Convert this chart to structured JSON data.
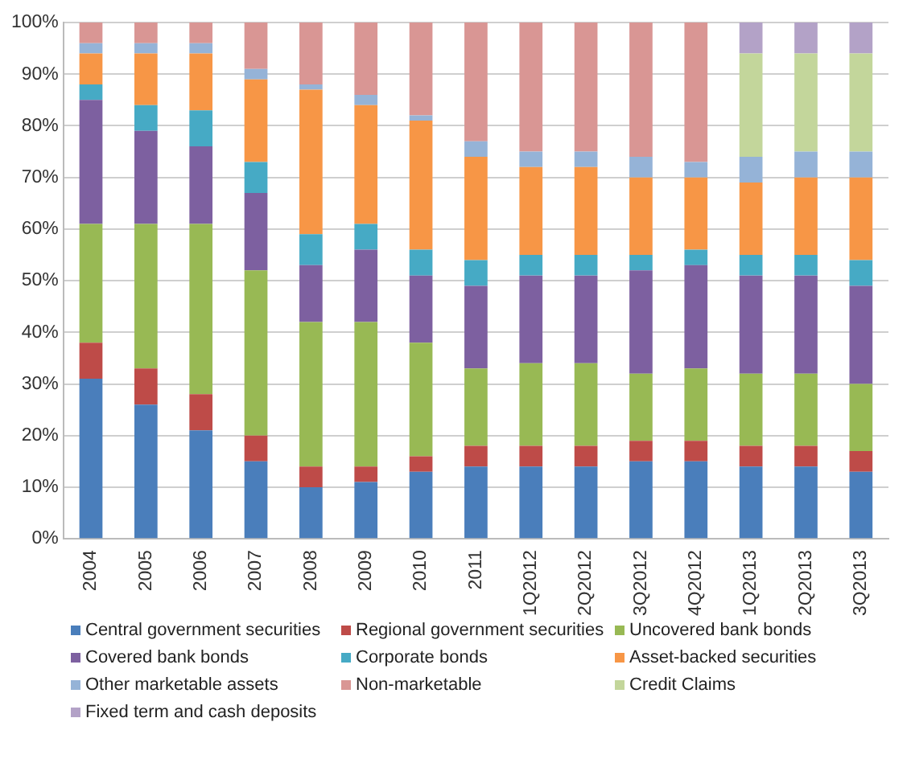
{
  "chart_data": {
    "type": "bar",
    "stacked": true,
    "grid": "y",
    "legend": "bottom",
    "categories": [
      "2004",
      "2005",
      "2006",
      "2007",
      "2008",
      "2009",
      "2010",
      "2011",
      "1Q2012",
      "2Q2012",
      "3Q2012",
      "4Q2012",
      "1Q2013",
      "2Q2013",
      "3Q2013"
    ],
    "ylim": [
      0,
      100
    ],
    "yticks": [
      {
        "value": 0,
        "label": "0%"
      },
      {
        "value": 10,
        "label": "10%"
      },
      {
        "value": 20,
        "label": "20%"
      },
      {
        "value": 30,
        "label": "30%"
      },
      {
        "value": 40,
        "label": "40%"
      },
      {
        "value": 50,
        "label": "50%"
      },
      {
        "value": 60,
        "label": "60%"
      },
      {
        "value": 70,
        "label": "70%"
      },
      {
        "value": 80,
        "label": "80%"
      },
      {
        "value": 90,
        "label": "90%"
      },
      {
        "value": 100,
        "label": "100%"
      }
    ],
    "series": [
      {
        "name": "Central government securities",
        "color": "#4a7ebb",
        "values": [
          31,
          26,
          21,
          15,
          10,
          11,
          13,
          14,
          14,
          14,
          15,
          15,
          14,
          14,
          13
        ]
      },
      {
        "name": "Regional government securities",
        "color": "#be4b48",
        "values": [
          7,
          7,
          7,
          5,
          4,
          3,
          3,
          4,
          4,
          4,
          4,
          4,
          4,
          4,
          4
        ]
      },
      {
        "name": "Uncovered bank bonds",
        "color": "#98b954",
        "values": [
          23,
          28,
          33,
          32,
          28,
          28,
          22,
          15,
          16,
          16,
          13,
          14,
          14,
          14,
          13
        ]
      },
      {
        "name": "Covered bank bonds",
        "color": "#7d60a0",
        "values": [
          24,
          18,
          15,
          15,
          11,
          14,
          13,
          16,
          17,
          17,
          20,
          20,
          19,
          19,
          19
        ]
      },
      {
        "name": "Corporate bonds",
        "color": "#46aac5",
        "values": [
          3,
          5,
          7,
          6,
          6,
          5,
          5,
          5,
          4,
          4,
          3,
          3,
          4,
          4,
          5
        ]
      },
      {
        "name": "Asset-backed securities",
        "color": "#f79646",
        "values": [
          6,
          10,
          11,
          16,
          28,
          23,
          25,
          20,
          17,
          17,
          15,
          14,
          14,
          15,
          16
        ]
      },
      {
        "name": "Other marketable assets",
        "color": "#95b3d7",
        "values": [
          2,
          2,
          2,
          2,
          1,
          2,
          1,
          3,
          3,
          3,
          4,
          3,
          5,
          5,
          5
        ]
      },
      {
        "name": "Non-marketable",
        "color": "#d99694",
        "values": [
          4,
          4,
          4,
          9,
          12,
          14,
          18,
          23,
          25,
          25,
          26,
          27,
          null,
          null,
          null
        ]
      },
      {
        "name": "Credit Claims",
        "color": "#c3d69b",
        "values": [
          null,
          null,
          null,
          null,
          null,
          null,
          null,
          null,
          null,
          null,
          null,
          null,
          20,
          19,
          19
        ]
      },
      {
        "name": "Fixed term and cash deposits",
        "color": "#b3a2c7",
        "values": [
          null,
          null,
          null,
          null,
          null,
          null,
          null,
          null,
          null,
          null,
          null,
          null,
          6,
          6,
          6
        ]
      }
    ]
  }
}
